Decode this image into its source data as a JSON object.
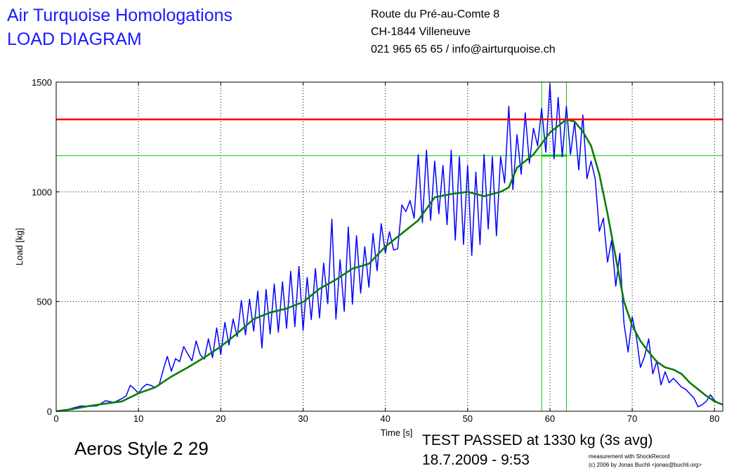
{
  "header": {
    "title_line1": "Air Turquoise Homologations",
    "title_line2": "LOAD DIAGRAM",
    "address_line1": "Route du Pré-au-Comte 8",
    "address_line2": "CH-1844 Villeneuve",
    "address_line3": "021 965 65 65 / info@airturquoise.ch"
  },
  "footer": {
    "glider_model": "Aeros Style 2 29",
    "result": "TEST PASSED at 1330 kg (3s avg)",
    "datetime": "18.7.2009 - 9:53",
    "credit_line1": "measurement with ShockRecord",
    "credit_line2": "(c) 2006 by Jonas Buchli <jonas@buchli.org>"
  },
  "chart_data": {
    "type": "line",
    "title": "",
    "xlabel": "Time [s]",
    "ylabel": "Load [kg]",
    "xlim": [
      0,
      81
    ],
    "ylim": [
      0,
      1500
    ],
    "xticks": [
      0,
      10,
      20,
      30,
      40,
      50,
      60,
      70,
      80
    ],
    "yticks": [
      0,
      500,
      1000,
      1500
    ],
    "grid": true,
    "colors": {
      "raw": "#0000ff",
      "average": "#0a7d0a",
      "pass_threshold": "#ff0000",
      "guide": "#00cc00"
    },
    "series": [
      {
        "key": "raw",
        "points": [
          [
            0,
            0
          ],
          [
            1,
            3
          ],
          [
            2,
            14
          ],
          [
            3,
            24
          ],
          [
            4,
            22
          ],
          [
            5,
            25
          ],
          [
            6,
            48
          ],
          [
            7,
            40
          ],
          [
            8,
            58
          ],
          [
            8.5,
            70
          ],
          [
            9,
            118
          ],
          [
            9.5,
            102
          ],
          [
            10,
            82
          ],
          [
            10.5,
            108
          ],
          [
            11,
            123
          ],
          [
            11.5,
            118
          ],
          [
            12,
            108
          ],
          [
            12.5,
            118
          ],
          [
            13,
            188
          ],
          [
            13.5,
            250
          ],
          [
            14,
            182
          ],
          [
            14.5,
            240
          ],
          [
            15,
            226
          ],
          [
            15.5,
            295
          ],
          [
            16,
            260
          ],
          [
            16.5,
            230
          ],
          [
            17,
            320
          ],
          [
            17.5,
            258
          ],
          [
            18,
            238
          ],
          [
            18.5,
            330
          ],
          [
            19,
            244
          ],
          [
            19.5,
            380
          ],
          [
            20,
            258
          ],
          [
            20.5,
            405
          ],
          [
            21,
            302
          ],
          [
            21.5,
            420
          ],
          [
            22,
            340
          ],
          [
            22.5,
            505
          ],
          [
            23,
            348
          ],
          [
            23.5,
            510
          ],
          [
            24,
            365
          ],
          [
            24.5,
            548
          ],
          [
            25,
            288
          ],
          [
            25.5,
            555
          ],
          [
            26,
            352
          ],
          [
            26.5,
            580
          ],
          [
            27,
            360
          ],
          [
            27.5,
            590
          ],
          [
            28,
            378
          ],
          [
            28.5,
            638
          ],
          [
            29,
            385
          ],
          [
            29.5,
            660
          ],
          [
            30,
            368
          ],
          [
            30.5,
            610
          ],
          [
            31,
            418
          ],
          [
            31.5,
            650
          ],
          [
            32,
            425
          ],
          [
            32.5,
            675
          ],
          [
            33,
            490
          ],
          [
            33.5,
            875
          ],
          [
            34,
            420
          ],
          [
            34.5,
            690
          ],
          [
            35,
            455
          ],
          [
            35.5,
            840
          ],
          [
            36,
            488
          ],
          [
            36.5,
            800
          ],
          [
            37,
            538
          ],
          [
            37.5,
            750
          ],
          [
            38,
            565
          ],
          [
            38.5,
            810
          ],
          [
            39,
            640
          ],
          [
            39.5,
            855
          ],
          [
            40,
            722
          ],
          [
            40.5,
            818
          ],
          [
            41,
            735
          ],
          [
            41.5,
            740
          ],
          [
            42,
            940
          ],
          [
            42.5,
            910
          ],
          [
            43,
            960
          ],
          [
            43.5,
            880
          ],
          [
            44,
            1170
          ],
          [
            44.5,
            860
          ],
          [
            45,
            1190
          ],
          [
            45.5,
            870
          ],
          [
            46,
            1140
          ],
          [
            46.5,
            900
          ],
          [
            47,
            1120
          ],
          [
            47.5,
            850
          ],
          [
            48,
            1190
          ],
          [
            48.5,
            780
          ],
          [
            49,
            1160
          ],
          [
            49.5,
            760
          ],
          [
            50,
            1120
          ],
          [
            50.5,
            710
          ],
          [
            51,
            1090
          ],
          [
            51.5,
            760
          ],
          [
            52,
            1170
          ],
          [
            52.5,
            830
          ],
          [
            53,
            1160
          ],
          [
            53.5,
            800
          ],
          [
            54,
            1160
          ],
          [
            54.5,
            1040
          ],
          [
            55,
            1390
          ],
          [
            55.5,
            1010
          ],
          [
            56,
            1260
          ],
          [
            56.5,
            1080
          ],
          [
            57,
            1360
          ],
          [
            57.5,
            1130
          ],
          [
            58,
            1290
          ],
          [
            58.5,
            1210
          ],
          [
            59,
            1380
          ],
          [
            59.5,
            1180
          ],
          [
            60,
            1490
          ],
          [
            60.5,
            1150
          ],
          [
            61,
            1430
          ],
          [
            61.5,
            1160
          ],
          [
            62,
            1390
          ],
          [
            62.5,
            1170
          ],
          [
            63,
            1320
          ],
          [
            63.5,
            1100
          ],
          [
            64,
            1350
          ],
          [
            64.5,
            1060
          ],
          [
            65,
            1140
          ],
          [
            65.5,
            1060
          ],
          [
            66,
            820
          ],
          [
            66.5,
            880
          ],
          [
            67,
            680
          ],
          [
            67.5,
            780
          ],
          [
            68,
            570
          ],
          [
            68.5,
            720
          ],
          [
            69,
            400
          ],
          [
            69.5,
            270
          ],
          [
            70,
            430
          ],
          [
            70.5,
            340
          ],
          [
            71,
            200
          ],
          [
            71.5,
            250
          ],
          [
            72,
            330
          ],
          [
            72.5,
            170
          ],
          [
            73,
            230
          ],
          [
            73.5,
            120
          ],
          [
            74,
            180
          ],
          [
            74.5,
            130
          ],
          [
            75,
            150
          ],
          [
            75.5,
            130
          ],
          [
            76,
            110
          ],
          [
            76.5,
            100
          ],
          [
            77,
            80
          ],
          [
            77.5,
            60
          ],
          [
            78,
            20
          ],
          [
            78.5,
            30
          ],
          [
            79,
            45
          ],
          [
            79.5,
            75
          ],
          [
            80,
            50
          ],
          [
            80.5,
            35
          ]
        ]
      },
      {
        "key": "average",
        "points": [
          [
            0,
            0
          ],
          [
            2,
            10
          ],
          [
            4,
            24
          ],
          [
            6,
            35
          ],
          [
            8,
            45
          ],
          [
            10,
            82
          ],
          [
            12,
            108
          ],
          [
            14,
            158
          ],
          [
            16,
            200
          ],
          [
            18,
            245
          ],
          [
            20,
            295
          ],
          [
            22,
            355
          ],
          [
            24,
            420
          ],
          [
            26,
            450
          ],
          [
            28,
            468
          ],
          [
            30,
            498
          ],
          [
            32,
            558
          ],
          [
            34,
            600
          ],
          [
            36,
            650
          ],
          [
            38,
            672
          ],
          [
            40,
            750
          ],
          [
            42,
            810
          ],
          [
            44,
            870
          ],
          [
            46,
            975
          ],
          [
            48,
            990
          ],
          [
            50,
            1000
          ],
          [
            52,
            980
          ],
          [
            54,
            1000
          ],
          [
            55,
            1020
          ],
          [
            56,
            1110
          ],
          [
            58,
            1170
          ],
          [
            60,
            1270
          ],
          [
            62,
            1330
          ],
          [
            63,
            1320
          ],
          [
            64,
            1275
          ],
          [
            65,
            1210
          ],
          [
            66,
            1080
          ],
          [
            67,
            900
          ],
          [
            68,
            700
          ],
          [
            69,
            500
          ],
          [
            70,
            390
          ],
          [
            71,
            320
          ],
          [
            72,
            270
          ],
          [
            73,
            225
          ],
          [
            74,
            200
          ],
          [
            75,
            190
          ],
          [
            76,
            170
          ],
          [
            77,
            130
          ],
          [
            78,
            100
          ],
          [
            79,
            70
          ],
          [
            80,
            45
          ],
          [
            81,
            30
          ]
        ]
      }
    ],
    "reference_lines": {
      "pass_threshold_kg": 1330,
      "guide_level_kg": 1165,
      "averaging_window_s": [
        59,
        62
      ]
    }
  }
}
